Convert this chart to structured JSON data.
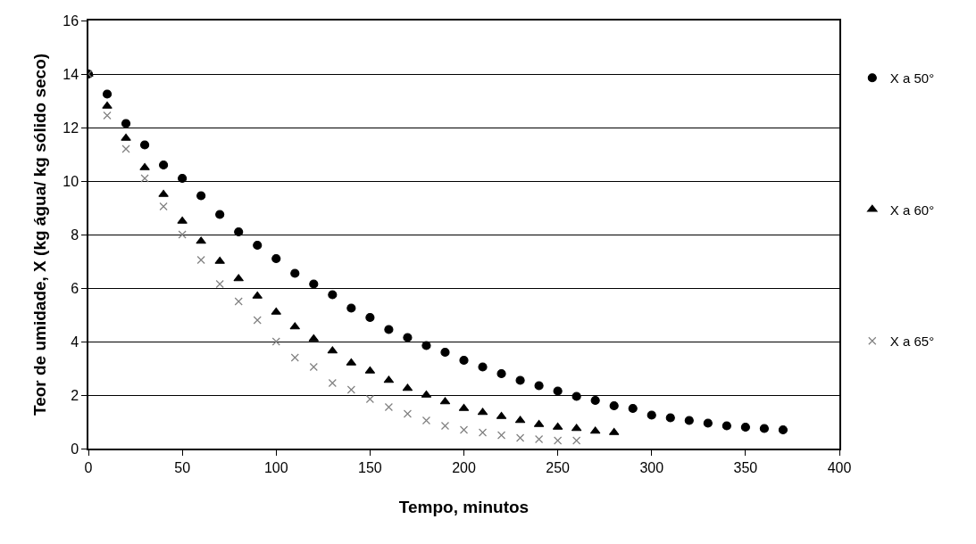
{
  "chart_data": {
    "type": "scatter",
    "xlabel": "Tempo, minutos",
    "ylabel": "Teor de umidade, X (kg água/ kg sólido seco)",
    "xlim": [
      0,
      400
    ],
    "xticks": [
      0,
      50,
      100,
      150,
      200,
      250,
      300,
      350,
      400
    ],
    "ylim": [
      0,
      16
    ],
    "yticks": [
      0,
      2,
      4,
      6,
      8,
      10,
      12,
      14,
      16
    ],
    "grid": "y",
    "legend": "right",
    "series": [
      {
        "name": "X a 50°",
        "color": "#000000",
        "marker": "circle",
        "x": [
          0,
          10,
          20,
          30,
          40,
          50,
          60,
          70,
          80,
          90,
          100,
          110,
          120,
          130,
          140,
          150,
          160,
          170,
          180,
          190,
          200,
          210,
          220,
          230,
          240,
          250,
          260,
          270,
          280,
          290,
          300,
          310,
          320,
          330,
          340,
          350,
          360,
          370
        ],
        "values": [
          14,
          13.25,
          12.15,
          11.35,
          10.6,
          10.1,
          9.45,
          8.75,
          8.1,
          7.6,
          7.1,
          6.55,
          6.15,
          5.75,
          5.25,
          4.9,
          4.45,
          4.15,
          3.85,
          3.6,
          3.3,
          3.05,
          2.8,
          2.55,
          2.35,
          2.15,
          1.95,
          1.8,
          1.6,
          1.5,
          1.25,
          1.15,
          1.05,
          0.95,
          0.85,
          0.8,
          0.75,
          0.7
        ]
      },
      {
        "name": "X a 60°",
        "color": "#000000",
        "marker": "triangle",
        "x": [
          0,
          10,
          20,
          30,
          40,
          50,
          60,
          70,
          80,
          90,
          100,
          110,
          120,
          130,
          140,
          150,
          160,
          170,
          180,
          190,
          200,
          210,
          220,
          230,
          240,
          250,
          260,
          270,
          280
        ],
        "values": [
          14,
          12.8,
          11.6,
          10.5,
          9.5,
          8.5,
          7.75,
          7.0,
          6.35,
          5.7,
          5.1,
          4.55,
          4.1,
          3.65,
          3.2,
          2.9,
          2.55,
          2.25,
          2.0,
          1.75,
          1.5,
          1.35,
          1.2,
          1.05,
          0.9,
          0.8,
          0.75,
          0.65,
          0.6
        ]
      },
      {
        "name": "X a 65°",
        "color": "#808080",
        "marker": "cross",
        "x": [
          0,
          10,
          20,
          30,
          40,
          50,
          60,
          70,
          80,
          90,
          100,
          110,
          120,
          130,
          140,
          150,
          160,
          170,
          180,
          190,
          200,
          210,
          220,
          230,
          240,
          250,
          260
        ],
        "values": [
          14,
          12.45,
          11.2,
          10.1,
          9.05,
          8.0,
          7.05,
          6.15,
          5.5,
          4.8,
          4.0,
          3.4,
          3.05,
          2.45,
          2.2,
          1.85,
          1.55,
          1.3,
          1.05,
          0.85,
          0.7,
          0.6,
          0.5,
          0.4,
          0.35,
          0.3,
          0.3
        ]
      }
    ]
  }
}
